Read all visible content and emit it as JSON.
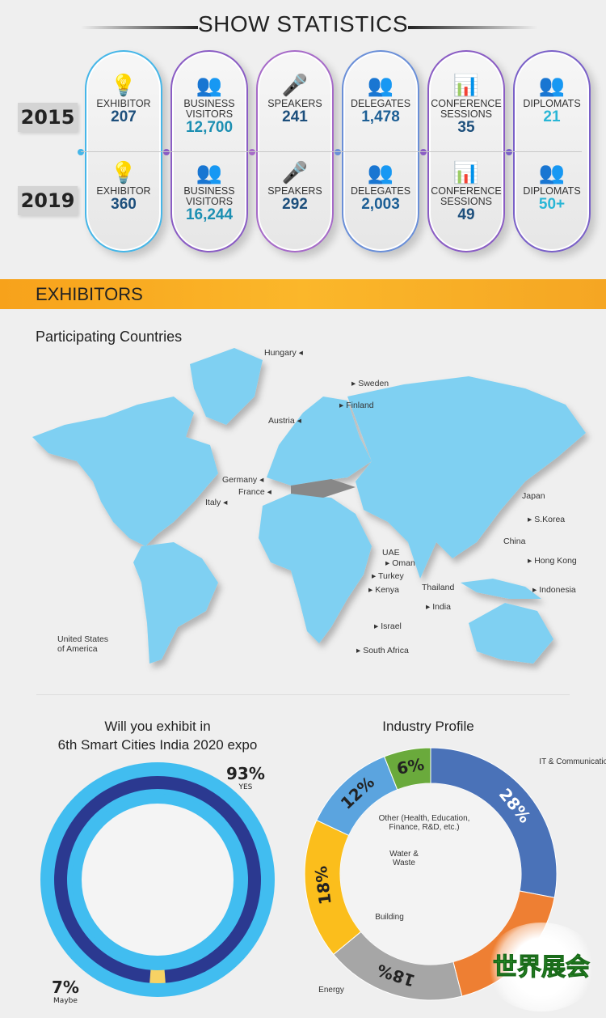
{
  "header": {
    "title": "SHOW STATISTICS"
  },
  "years": [
    "2015",
    "2019"
  ],
  "stats": [
    {
      "icon": "exhibitor-icon",
      "glyph": "💡",
      "label": "EXHIBITOR",
      "label2": "",
      "v2015": "207",
      "v2019": "360",
      "color": "#1d4f7c",
      "ring": "#45b6e8"
    },
    {
      "icon": "business-visitors-icon",
      "glyph": "👥",
      "label": "BUSINESS",
      "label2": "VISITORS",
      "v2015": "12,700",
      "v2019": "16,244",
      "color": "#1c8fb2",
      "ring": "#8a5cc4"
    },
    {
      "icon": "speaker-icon",
      "glyph": "🎤",
      "label": "SPEAKERS",
      "label2": "",
      "v2015": "241",
      "v2019": "292",
      "color": "#1d4f7c",
      "ring": "#a66ac8"
    },
    {
      "icon": "delegates-icon",
      "glyph": "👥",
      "label": "DELEGATES",
      "label2": "",
      "v2015": "1,478",
      "v2019": "2,003",
      "color": "#1d5f95",
      "ring": "#6a8fd8"
    },
    {
      "icon": "conference-sessions-icon",
      "glyph": "📊",
      "label": "CONFERENCE",
      "label2": "SESSIONS",
      "v2015": "35",
      "v2019": "49",
      "color": "#1d4f7c",
      "ring": "#8a5cc4"
    },
    {
      "icon": "diplomats-icon",
      "glyph": "👥",
      "label": "DIPLOMATS",
      "label2": "",
      "v2015": "21",
      "v2019": "50+",
      "color": "#29b6d6",
      "ring": "#7a60c8"
    }
  ],
  "banner": {
    "title": "EXHIBITORS"
  },
  "map": {
    "subtitle": "Participating Countries",
    "land_color": "#7fd0f2",
    "countries": [
      "Hungary",
      "Sweden",
      "Finland",
      "Austria",
      "Germany",
      "France",
      "Italy",
      "Japan",
      "S.Korea",
      "China",
      "Hong Kong",
      "UAE",
      "Oman",
      "Turkey",
      "Kenya",
      "Thailand",
      "Indonesia",
      "India",
      "Israel",
      "South Africa",
      "United States of America"
    ]
  },
  "survey": {
    "title_line1": "Will you exhibit in",
    "title_line2": "6th Smart Cities India 2020 expo",
    "yes": {
      "pct": "93%",
      "label": "YES",
      "value": 93,
      "color": "#2b3990"
    },
    "maybe": {
      "pct": "7%",
      "label": "Maybe",
      "value": 7,
      "color": "#f7d264"
    },
    "outer_color": "#41bdf0"
  },
  "chart_data": {
    "type": "pie",
    "title": "Industry Profile",
    "series": [
      {
        "name": "IT & Communications",
        "pct": "28%",
        "value": 28,
        "color": "#4a72b8"
      },
      {
        "name": "",
        "pct": "",
        "value": 18,
        "color": "#ee7f33"
      },
      {
        "name": "Energy",
        "pct": "18%",
        "value": 18,
        "color": "#a6a6a6"
      },
      {
        "name": "Building",
        "pct": "18%",
        "value": 18,
        "color": "#fbbe1c"
      },
      {
        "name": "Water & Waste",
        "pct": "12%",
        "value": 12,
        "color": "#5ba4df"
      },
      {
        "name": "Other (Health, Education, Finance, R&D, etc.)",
        "pct": "6%",
        "value": 6,
        "color": "#6aaa3c"
      }
    ]
  },
  "watermark": {
    "text": "世界展会"
  }
}
